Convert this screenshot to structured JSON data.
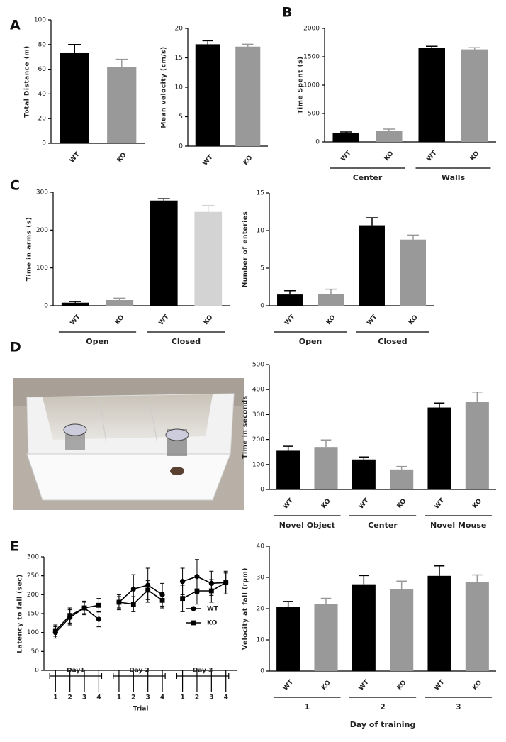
{
  "panel_labels": [
    "A",
    "B",
    "C",
    "D",
    "E"
  ],
  "chart_data": [
    {
      "type": "bar",
      "y_label": "Total Distance (m)",
      "categories": [
        "WT",
        "KO"
      ],
      "values": [
        73,
        62
      ],
      "errors": [
        7,
        6
      ],
      "colors": [
        "#000000",
        "#999999"
      ],
      "ylim": [
        0,
        100
      ],
      "yticks": [
        0,
        20,
        40,
        60,
        80,
        100
      ]
    },
    {
      "type": "bar",
      "y_label": "Mean velocity (cm/s)",
      "categories": [
        "WT",
        "KO"
      ],
      "values": [
        17.3,
        16.9
      ],
      "errors": [
        0.6,
        0.4
      ],
      "colors": [
        "#000000",
        "#999999"
      ],
      "ylim": [
        0,
        20
      ],
      "yticks": [
        0,
        5,
        10,
        15,
        20
      ]
    },
    {
      "type": "bar",
      "y_label": "Time Spent (s)",
      "categories": [
        "WT",
        "KO",
        "WT",
        "KO"
      ],
      "values": [
        150,
        190,
        1660,
        1630
      ],
      "errors": [
        25,
        35,
        25,
        30
      ],
      "colors": [
        "#000000",
        "#999999",
        "#000000",
        "#999999"
      ],
      "ylim": [
        0,
        2000
      ],
      "yticks": [
        0,
        500,
        1000,
        1500,
        2000
      ],
      "group_labels": [
        "Center",
        "Walls"
      ]
    },
    {
      "type": "bar",
      "y_label": "Time in arms (s)",
      "categories": [
        "WT",
        "KO",
        "WT",
        "KO"
      ],
      "values": [
        8,
        15,
        278,
        248
      ],
      "errors": [
        3,
        5,
        5,
        17
      ],
      "colors": [
        "#000000",
        "#999999",
        "#000000",
        "#d3d3d3"
      ],
      "ylim": [
        0,
        300
      ],
      "yticks": [
        0,
        100,
        200,
        300
      ],
      "group_labels": [
        "Open",
        "Closed"
      ]
    },
    {
      "type": "bar",
      "y_label": "Number of enteries",
      "categories": [
        "WT",
        "KO",
        "WT",
        "KO"
      ],
      "values": [
        1.5,
        1.6,
        10.7,
        8.8
      ],
      "errors": [
        0.5,
        0.6,
        1.0,
        0.6
      ],
      "colors": [
        "#000000",
        "#999999",
        "#000000",
        "#999999"
      ],
      "ylim": [
        0,
        15
      ],
      "yticks": [
        0,
        5,
        10,
        15
      ],
      "group_labels": [
        "Open",
        "Closed"
      ]
    },
    {
      "type": "bar",
      "y_label": "Time in seconds",
      "categories": [
        "WT",
        "KO",
        "WT",
        "KO",
        "WT",
        "KO"
      ],
      "values": [
        155,
        170,
        120,
        80,
        328,
        352
      ],
      "errors": [
        18,
        28,
        10,
        12,
        18,
        38
      ],
      "colors": [
        "#000000",
        "#999999",
        "#000000",
        "#999999",
        "#000000",
        "#999999"
      ],
      "ylim": [
        0,
        500
      ],
      "yticks": [
        0,
        100,
        200,
        300,
        400,
        500
      ],
      "group_labels": [
        "Novel Object",
        "Center",
        "Novel Mouse"
      ]
    },
    {
      "type": "line",
      "y_label": "Latency to fall (sec)",
      "x_label": "Trial",
      "categories": [
        "1",
        "2",
        "3",
        "4",
        "1",
        "2",
        "3",
        "4",
        "1",
        "2",
        "3",
        "4"
      ],
      "group_labels": [
        "Day1",
        "Day 2",
        "Day 3"
      ],
      "ylim": [
        0,
        300
      ],
      "yticks": [
        0,
        50,
        100,
        150,
        200,
        250,
        300
      ],
      "series": [
        {
          "name": "WT",
          "marker": "circle",
          "color": "#000000",
          "values": [
            100,
            140,
            165,
            135,
            180,
            215,
            225,
            200,
            235,
            248,
            230,
            232
          ],
          "errors": [
            15,
            20,
            18,
            20,
            20,
            38,
            45,
            30,
            35,
            45,
            32,
            30
          ]
        },
        {
          "name": "KO",
          "marker": "square",
          "color": "#000000",
          "values": [
            105,
            145,
            165,
            172,
            180,
            175,
            212,
            185,
            190,
            210,
            210,
            232
          ],
          "errors": [
            15,
            20,
            15,
            18,
            15,
            20,
            25,
            20,
            35,
            35,
            30,
            25
          ]
        }
      ]
    },
    {
      "type": "bar",
      "y_label": "Velocity at fall (rpm)",
      "x_label": "Day of training",
      "categories": [
        "WT",
        "KO",
        "WT",
        "KO",
        "WT",
        "KO"
      ],
      "values": [
        20.5,
        21.5,
        27.8,
        26.3,
        30.5,
        28.5
      ],
      "errors": [
        1.8,
        1.8,
        2.8,
        2.5,
        3.2,
        2.3
      ],
      "colors": [
        "#000000",
        "#999999",
        "#000000",
        "#999999",
        "#000000",
        "#999999"
      ],
      "ylim": [
        0,
        40
      ],
      "yticks": [
        0,
        10,
        20,
        30,
        40
      ],
      "group_labels": [
        "1",
        "2",
        "3"
      ]
    }
  ]
}
